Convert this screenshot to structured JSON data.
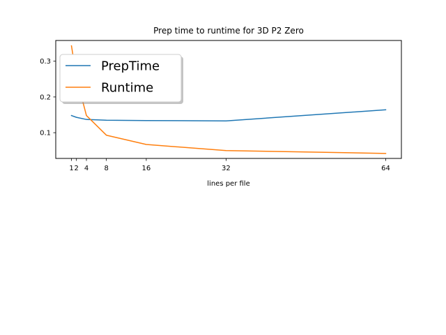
{
  "chart_data": {
    "type": "line",
    "title": "Prep time to runtime for 3D P2 Zero",
    "xlabel": "lines per file",
    "ylabel": "",
    "x": [
      1,
      2,
      4,
      8,
      16,
      32,
      64
    ],
    "x_ticks": [
      1,
      2,
      4,
      8,
      16,
      32,
      64
    ],
    "x_tick_labels": [
      "1",
      "2",
      "4",
      "8",
      "16",
      "32",
      "64"
    ],
    "y_ticks": [
      0.1,
      0.2,
      0.3
    ],
    "y_tick_labels": [
      "0.1",
      "0.2",
      "0.3"
    ],
    "xlim": [
      -2.15,
      67.15
    ],
    "ylim": [
      0.028,
      0.358
    ],
    "grid": false,
    "legend_position": "upper left",
    "series": [
      {
        "name": "PrepTime",
        "color": "#1f77b4",
        "values": [
          0.148,
          0.143,
          0.137,
          0.135,
          0.134,
          0.133,
          0.164
        ]
      },
      {
        "name": "Runtime",
        "color": "#ff7f0e",
        "values": [
          0.343,
          0.255,
          0.148,
          0.093,
          0.067,
          0.05,
          0.042
        ]
      }
    ]
  }
}
